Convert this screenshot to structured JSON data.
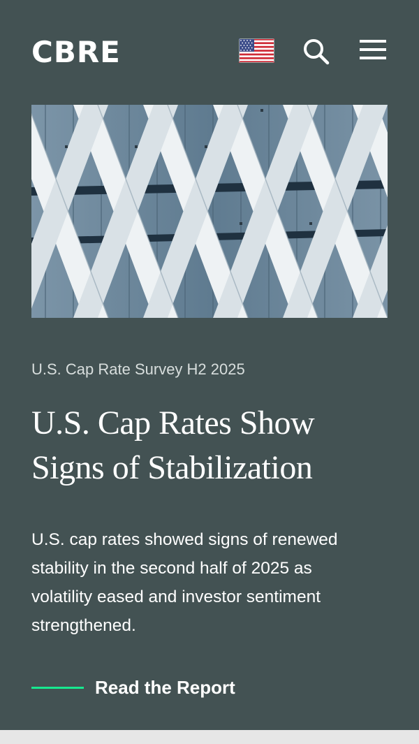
{
  "header": {
    "logo_text": "CBRE",
    "region_flag_icon": "us-flag-icon",
    "search_icon": "search-icon",
    "menu_icon": "hamburger-menu-icon"
  },
  "hero": {
    "eyebrow": "U.S. Cap Rate Survey H2 2025",
    "headline": "U.S. Cap Rates Show Signs of Stabilization",
    "description": "U.S. cap rates showed signs of renewed stability in the second half of 2025 as volatility eased and investor sentiment strengthened.",
    "cta_label": "Read the Report"
  },
  "colors": {
    "background": "#435253",
    "accent": "#17e88f",
    "text": "#ffffff",
    "footer_strip": "#e6e6e6"
  }
}
